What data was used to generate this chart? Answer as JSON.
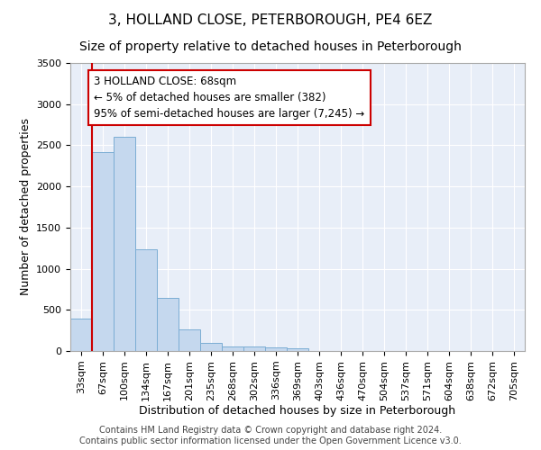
{
  "title": "3, HOLLAND CLOSE, PETERBOROUGH, PE4 6EZ",
  "subtitle": "Size of property relative to detached houses in Peterborough",
  "xlabel": "Distribution of detached houses by size in Peterborough",
  "ylabel": "Number of detached properties",
  "footer_line1": "Contains HM Land Registry data © Crown copyright and database right 2024.",
  "footer_line2": "Contains public sector information licensed under the Open Government Licence v3.0.",
  "categories": [
    "33sqm",
    "67sqm",
    "100sqm",
    "134sqm",
    "167sqm",
    "201sqm",
    "235sqm",
    "268sqm",
    "302sqm",
    "336sqm",
    "369sqm",
    "403sqm",
    "436sqm",
    "470sqm",
    "504sqm",
    "537sqm",
    "571sqm",
    "604sqm",
    "638sqm",
    "672sqm",
    "705sqm"
  ],
  "values": [
    390,
    2420,
    2600,
    1240,
    640,
    260,
    100,
    60,
    55,
    40,
    30,
    0,
    0,
    0,
    0,
    0,
    0,
    0,
    0,
    0,
    0
  ],
  "bar_color": "#c5d8ee",
  "bar_edge_color": "#7badd4",
  "annotation_line_color": "#cc0000",
  "annotation_box_edge_color": "#cc0000",
  "annotation_box_text_line1": "3 HOLLAND CLOSE: 68sqm",
  "annotation_box_text_line2": "← 5% of detached houses are smaller (382)",
  "annotation_box_text_line3": "95% of semi-detached houses are larger (7,245) →",
  "ylim_max": 3500,
  "yticks": [
    0,
    500,
    1000,
    1500,
    2000,
    2500,
    3000,
    3500
  ],
  "background_color": "#e8eef8",
  "grid_color": "#ffffff",
  "fig_bg_color": "#ffffff",
  "title_fontsize": 11,
  "subtitle_fontsize": 10,
  "axis_label_fontsize": 9,
  "tick_fontsize": 8,
  "annotation_fontsize": 8.5,
  "footer_fontsize": 7
}
